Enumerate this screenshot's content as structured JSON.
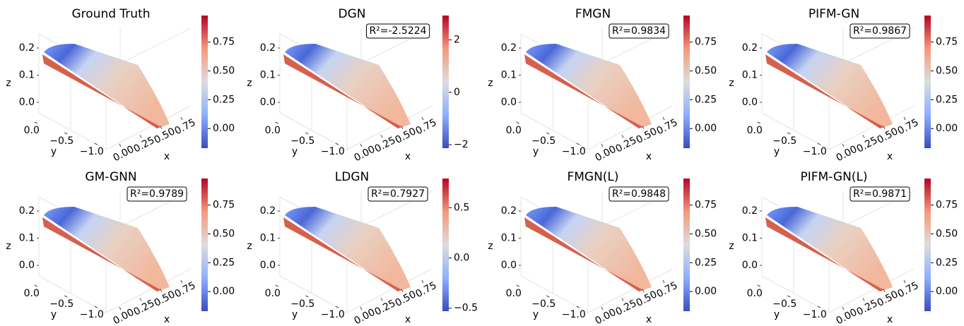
{
  "chart_data": [
    {
      "type": "scatter3d",
      "title": "Ground Truth",
      "xlabel": "x",
      "ylabel": "y",
      "zlabel": "z",
      "xlim": [
        -0.05,
        0.85
      ],
      "xticks": [
        {
          "value": 0,
          "label": "0.00"
        },
        0.25,
        {
          "value": 0.5,
          "label": "0.50"
        },
        0.75
      ],
      "ylim": [
        0.15,
        -1.25
      ],
      "yticks": [
        {
          "value": 0,
          "label": "0.0"
        },
        {
          "value": -0.5,
          "label": "−0.5"
        },
        {
          "value": -1,
          "label": "−1.0"
        }
      ],
      "zlim": [
        -0.05,
        0.25
      ],
      "zticks": [
        {
          "value": 0,
          "label": "0.0"
        },
        0.1,
        0.2
      ],
      "clim": [
        -0.17,
        0.98
      ],
      "cticks": [
        {
          "value": 0,
          "label": "0.00"
        },
        0.25,
        {
          "value": 0.5,
          "label": "0.50"
        },
        0.75
      ]
    },
    {
      "type": "scatter3d",
      "title": "DGN",
      "annotation": "R²=-2.5224",
      "xlabel": "x",
      "ylabel": "y",
      "zlabel": "z",
      "xlim": [
        -0.05,
        0.85
      ],
      "xticks": [
        {
          "value": 0,
          "label": "0.00"
        },
        0.25,
        {
          "value": 0.5,
          "label": "0.50"
        },
        0.75
      ],
      "ylim": [
        0.15,
        -1.25
      ],
      "yticks": [
        {
          "value": 0,
          "label": "0.0"
        },
        {
          "value": -0.5,
          "label": "−0.5"
        },
        {
          "value": -1,
          "label": "−1.0"
        }
      ],
      "zlim": [
        -0.05,
        0.25
      ],
      "zticks": [
        {
          "value": 0,
          "label": "0.0"
        },
        0.1,
        0.2
      ],
      "clim": [
        -2.13,
        2.93
      ],
      "cticks": [
        {
          "value": -2,
          "label": "−2"
        },
        0,
        2
      ]
    },
    {
      "type": "scatter3d",
      "title": "FMGN",
      "annotation": "R²=0.9834",
      "xlabel": "x",
      "ylabel": "y",
      "zlabel": "z",
      "xlim": [
        -0.05,
        0.85
      ],
      "xticks": [
        {
          "value": 0,
          "label": "0.00"
        },
        0.25,
        {
          "value": 0.5,
          "label": "0.50"
        },
        0.75
      ],
      "ylim": [
        0.15,
        -1.25
      ],
      "yticks": [
        {
          "value": 0,
          "label": "0.0"
        },
        {
          "value": -0.5,
          "label": "−0.5"
        },
        {
          "value": -1,
          "label": "−1.0"
        }
      ],
      "zlim": [
        -0.05,
        0.25
      ],
      "zticks": [
        {
          "value": 0,
          "label": "0.0"
        },
        0.1,
        0.2
      ],
      "clim": [
        -0.17,
        0.98
      ],
      "cticks": [
        {
          "value": 0,
          "label": "0.00"
        },
        0.25,
        {
          "value": 0.5,
          "label": "0.50"
        },
        0.75
      ]
    },
    {
      "type": "scatter3d",
      "title": "PIFM-GN",
      "annotation": "R²=0.9867",
      "xlabel": "x",
      "ylabel": "y",
      "zlabel": "z",
      "xlim": [
        -0.05,
        0.85
      ],
      "xticks": [
        {
          "value": 0,
          "label": "0.00"
        },
        0.25,
        {
          "value": 0.5,
          "label": "0.50"
        },
        0.75
      ],
      "ylim": [
        0.15,
        -1.25
      ],
      "yticks": [
        {
          "value": 0,
          "label": "0.0"
        },
        {
          "value": -0.5,
          "label": "−0.5"
        },
        {
          "value": -1,
          "label": "−1.0"
        }
      ],
      "zlim": [
        -0.05,
        0.25
      ],
      "zticks": [
        {
          "value": 0,
          "label": "0.0"
        },
        0.1,
        0.2
      ],
      "clim": [
        -0.17,
        0.98
      ],
      "cticks": [
        {
          "value": 0,
          "label": "0.00"
        },
        0.25,
        {
          "value": 0.5,
          "label": "0.50"
        },
        0.75
      ]
    },
    {
      "type": "scatter3d",
      "title": "GM-GNN",
      "annotation": "R²=0.9789",
      "xlabel": "x",
      "ylabel": "y",
      "zlabel": "z",
      "xlim": [
        -0.05,
        0.85
      ],
      "xticks": [
        {
          "value": 0,
          "label": "0.00"
        },
        0.25,
        {
          "value": 0.5,
          "label": "0.50"
        },
        0.75
      ],
      "ylim": [
        0.15,
        -1.25
      ],
      "yticks": [
        {
          "value": 0,
          "label": "0.0"
        },
        {
          "value": -0.5,
          "label": "−0.5"
        },
        {
          "value": -1,
          "label": "−1.0"
        }
      ],
      "zlim": [
        -0.05,
        0.25
      ],
      "zticks": [
        {
          "value": 0,
          "label": "0.0"
        },
        0.1,
        0.2
      ],
      "clim": [
        -0.17,
        0.98
      ],
      "cticks": [
        {
          "value": 0,
          "label": "0.00"
        },
        0.25,
        {
          "value": 0.5,
          "label": "0.50"
        },
        0.75
      ]
    },
    {
      "type": "scatter3d",
      "title": "LDGN",
      "annotation": "R²=0.7927",
      "xlabel": "x",
      "ylabel": "y",
      "zlabel": "z",
      "xlim": [
        -0.05,
        0.85
      ],
      "xticks": [
        {
          "value": 0,
          "label": "0.00"
        },
        0.25,
        {
          "value": 0.5,
          "label": "0.50"
        },
        0.75
      ],
      "ylim": [
        0.15,
        -1.25
      ],
      "yticks": [
        {
          "value": 0,
          "label": "0.0"
        },
        {
          "value": -0.5,
          "label": "−0.5"
        },
        {
          "value": -1,
          "label": "−1.0"
        }
      ],
      "zlim": [
        -0.05,
        0.25
      ],
      "zticks": [
        {
          "value": 0,
          "label": "0.0"
        },
        0.1,
        0.2
      ],
      "clim": [
        -0.53,
        0.79
      ],
      "cticks": [
        {
          "value": -0.5,
          "label": "−0.5"
        },
        {
          "value": 0,
          "label": "0.0"
        },
        0.5
      ]
    },
    {
      "type": "scatter3d",
      "title": "FMGN(L)",
      "annotation": "R²=0.9848",
      "xlabel": "x",
      "ylabel": "y",
      "zlabel": "z",
      "xlim": [
        -0.05,
        0.85
      ],
      "xticks": [
        {
          "value": 0,
          "label": "0.00"
        },
        0.25,
        {
          "value": 0.5,
          "label": "0.50"
        },
        0.75
      ],
      "ylim": [
        0.15,
        -1.25
      ],
      "yticks": [
        {
          "value": 0,
          "label": "0.0"
        },
        {
          "value": -0.5,
          "label": "−0.5"
        },
        {
          "value": -1,
          "label": "−1.0"
        }
      ],
      "zlim": [
        -0.05,
        0.25
      ],
      "zticks": [
        {
          "value": 0,
          "label": "0.0"
        },
        0.1,
        0.2
      ],
      "clim": [
        -0.17,
        0.98
      ],
      "cticks": [
        {
          "value": 0,
          "label": "0.00"
        },
        0.25,
        {
          "value": 0.5,
          "label": "0.50"
        },
        0.75
      ]
    },
    {
      "type": "scatter3d",
      "title": "PIFM-GN(L)",
      "annotation": "R²=0.9871",
      "xlabel": "x",
      "ylabel": "y",
      "zlabel": "z",
      "xlim": [
        -0.05,
        0.85
      ],
      "xticks": [
        {
          "value": 0,
          "label": "0.00"
        },
        0.25,
        {
          "value": 0.5,
          "label": "0.50"
        },
        0.75
      ],
      "ylim": [
        0.15,
        -1.25
      ],
      "yticks": [
        {
          "value": 0,
          "label": "0.0"
        },
        {
          "value": -0.5,
          "label": "−0.5"
        },
        {
          "value": -1,
          "label": "−1.0"
        }
      ],
      "zlim": [
        -0.05,
        0.25
      ],
      "zticks": [
        {
          "value": 0,
          "label": "0.0"
        },
        0.1,
        0.2
      ],
      "clim": [
        -0.17,
        0.98
      ],
      "cticks": [
        {
          "value": 0,
          "label": "0.00"
        },
        0.25,
        {
          "value": 0.5,
          "label": "0.50"
        },
        0.75
      ]
    }
  ]
}
